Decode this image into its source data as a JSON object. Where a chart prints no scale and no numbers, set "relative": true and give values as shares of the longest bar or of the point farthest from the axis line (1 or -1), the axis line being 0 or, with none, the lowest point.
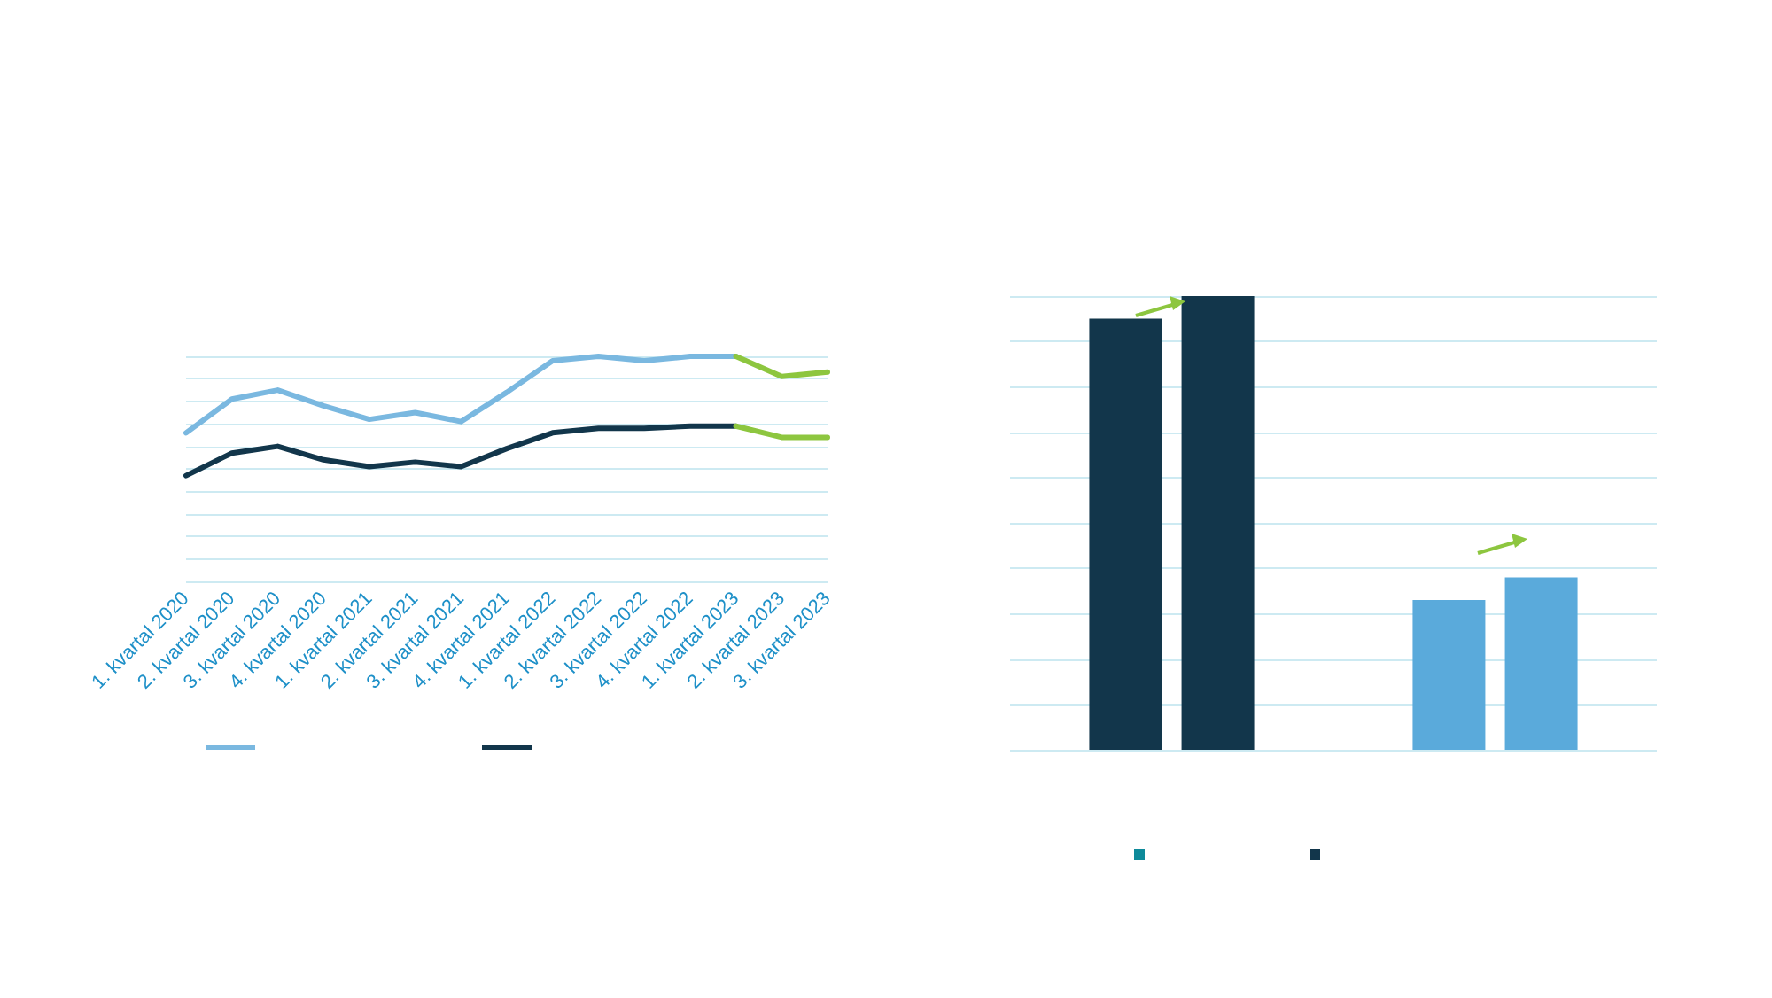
{
  "chart_data": [
    {
      "type": "line",
      "relative": true,
      "grid": "y",
      "marker": "none",
      "line_style": "solid",
      "categories": [
        "1. kvartal 2020",
        "2. kvartal 2020",
        "3. kvartal 2020",
        "4. kvartal 2020",
        "1. kvartal 2021",
        "2. kvartal 2021",
        "3. kvartal 2021",
        "4. kvartal 2021",
        "1. kvartal 2022",
        "2. kvartal 2022",
        "3. kvartal 2022",
        "4. kvartal 2022",
        "1. kvartal 2023",
        "2. kvartal 2023",
        "3. kvartal 2023"
      ],
      "series": [
        {
          "color": "#7ab8e0",
          "values": [
            0.66,
            0.81,
            0.85,
            0.78,
            0.72,
            0.75,
            0.71,
            0.84,
            0.98,
            1,
            0.98,
            1,
            1,
            null,
            null
          ]
        },
        {
          "color": "#12364b",
          "values": [
            0.47,
            0.57,
            0.6,
            0.54,
            0.51,
            0.53,
            0.51,
            0.59,
            0.66,
            0.68,
            0.68,
            0.69,
            0.69,
            null,
            null
          ]
        },
        {
          "color": "#8dc63f",
          "values": [
            null,
            null,
            null,
            null,
            null,
            null,
            null,
            null,
            null,
            null,
            null,
            null,
            1,
            0.91,
            0.93
          ]
        },
        {
          "color": "#8dc63f",
          "values": [
            null,
            null,
            null,
            null,
            null,
            null,
            null,
            null,
            null,
            null,
            null,
            null,
            0.69,
            0.64,
            0.64
          ]
        }
      ]
    },
    {
      "type": "bar",
      "relative": true,
      "grid": "y",
      "categories": [
        null,
        null
      ],
      "series": [
        {
          "color": "#0e8a9a",
          "colors": [
            "#12364b",
            "#5aaadb"
          ],
          "values": [
            0.95,
            0.33
          ]
        },
        {
          "color": "#12364b",
          "colors": [
            "#12364b",
            "#5aaadb"
          ],
          "values": [
            1,
            0.38
          ]
        }
      ]
    }
  ]
}
